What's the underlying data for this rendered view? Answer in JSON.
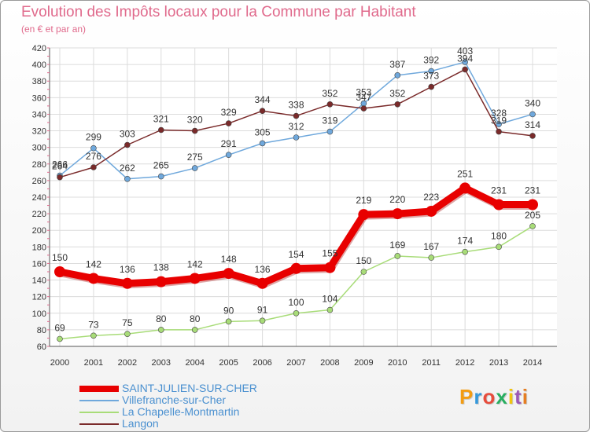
{
  "header": {
    "title": "Evolution des Impôts locaux pour la Commune par Habitant",
    "subtitle": "(en € et par an)"
  },
  "brand": {
    "text": "Proxiti",
    "colors": [
      "#f39c12",
      "#3498db",
      "#e74c3c",
      "#27ae60",
      "#f1c40f",
      "#9b59b6",
      "#e67e22"
    ]
  },
  "chart_data": {
    "type": "line",
    "title": "Evolution des Impôts locaux pour la Commune par Habitant",
    "subtitle": "(en € et par an)",
    "x": [
      "2000",
      "2001",
      "2002",
      "2003",
      "2004",
      "2005",
      "2006",
      "2007",
      "2008",
      "2009",
      "2010",
      "2011",
      "2012",
      "2013",
      "2014"
    ],
    "ylim": [
      60,
      420
    ],
    "yticks": [
      60,
      80,
      100,
      120,
      140,
      160,
      180,
      200,
      220,
      240,
      260,
      280,
      300,
      320,
      340,
      360,
      380,
      400,
      420
    ],
    "grid": true,
    "legend_position": "bottom-left",
    "series": [
      {
        "name": "SAINT-JULIEN-SUR-CHER",
        "color": "#e80000",
        "width": 9,
        "marker": 7,
        "values": [
          150,
          142,
          136,
          138,
          142,
          148,
          136,
          154,
          155,
          219,
          220,
          223,
          251,
          231,
          231
        ]
      },
      {
        "name": "Villefranche-sur-Cher",
        "color": "#6fa8dc",
        "width": 1.5,
        "marker": 3.5,
        "values": [
          266,
          299,
          262,
          265,
          275,
          291,
          305,
          312,
          319,
          353,
          387,
          392,
          403,
          328,
          340
        ]
      },
      {
        "name": "La Chapelle-Montmartin",
        "color": "#a8dc78",
        "width": 1.5,
        "marker": 3.5,
        "values": [
          69,
          73,
          75,
          80,
          80,
          90,
          91,
          100,
          104,
          150,
          169,
          167,
          174,
          180,
          205
        ]
      },
      {
        "name": "Langon",
        "color": "#7a2a2a",
        "width": 1.5,
        "marker": 3.5,
        "values": [
          264,
          276,
          303,
          321,
          320,
          329,
          344,
          338,
          352,
          347,
          352,
          373,
          394,
          319,
          314
        ]
      }
    ]
  }
}
